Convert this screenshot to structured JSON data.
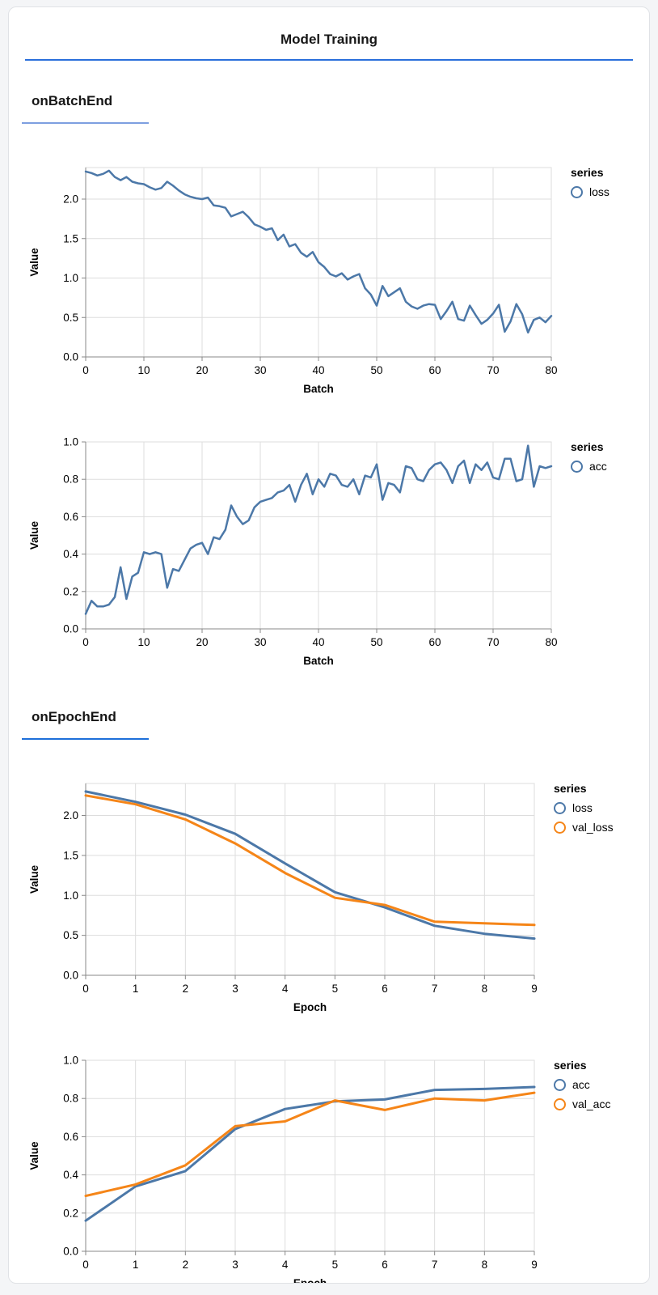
{
  "surface": {
    "title": "Model Training"
  },
  "sections": [
    {
      "heading": "onBatchEnd",
      "underline_color": "#7d9fe0"
    },
    {
      "heading": "onEpochEnd",
      "underline_color": "#1e6fd9"
    }
  ],
  "styles": {
    "page_bg": "#f4f5f7",
    "card_bg": "#ffffff",
    "card_border": "#e0e2e6",
    "title_underline": "#2a6fdb",
    "grid_color": "#dddddd",
    "axis_color": "#888888",
    "label_color": "#000000",
    "series_blue": "#4c78a8",
    "series_orange": "#f58518"
  },
  "chart_data": [
    {
      "id": "batch-loss",
      "type": "line",
      "xlabel": "Batch",
      "ylabel": "Value",
      "legend_title": "series",
      "legend_position": "right",
      "grid": true,
      "x_domain": [
        0,
        80
      ],
      "ylim": [
        0,
        2.4
      ],
      "xticks": [
        0,
        10,
        20,
        30,
        40,
        50,
        60,
        70,
        80
      ],
      "yticks": [
        0,
        0.5,
        1,
        1.5,
        2
      ],
      "ytick_decimals": 1,
      "series": [
        {
          "name": "loss",
          "color": "#4c78a8",
          "values": [
            2.35,
            2.33,
            2.3,
            2.32,
            2.36,
            2.28,
            2.24,
            2.28,
            2.22,
            2.2,
            2.19,
            2.15,
            2.12,
            2.14,
            2.22,
            2.17,
            2.11,
            2.06,
            2.03,
            2.01,
            2.0,
            2.02,
            1.92,
            1.91,
            1.89,
            1.78,
            1.81,
            1.84,
            1.77,
            1.68,
            1.65,
            1.61,
            1.63,
            1.48,
            1.55,
            1.4,
            1.43,
            1.32,
            1.27,
            1.33,
            1.2,
            1.14,
            1.05,
            1.02,
            1.06,
            0.98,
            1.02,
            1.05,
            0.87,
            0.79,
            0.65,
            0.9,
            0.77,
            0.82,
            0.87,
            0.7,
            0.64,
            0.61,
            0.65,
            0.67,
            0.66,
            0.48,
            0.58,
            0.7,
            0.48,
            0.46,
            0.65,
            0.53,
            0.42,
            0.47,
            0.55,
            0.66,
            0.32,
            0.45,
            0.67,
            0.54,
            0.31,
            0.47,
            0.5,
            0.44,
            0.52
          ]
        }
      ]
    },
    {
      "id": "batch-acc",
      "type": "line",
      "xlabel": "Batch",
      "ylabel": "Value",
      "legend_title": "series",
      "legend_position": "right",
      "grid": true,
      "x_domain": [
        0,
        80
      ],
      "ylim": [
        0,
        1.0
      ],
      "xticks": [
        0,
        10,
        20,
        30,
        40,
        50,
        60,
        70,
        80
      ],
      "yticks": [
        0,
        0.2,
        0.4,
        0.6,
        0.8,
        1.0
      ],
      "ytick_decimals": 1,
      "series": [
        {
          "name": "acc",
          "color": "#4c78a8",
          "values": [
            0.08,
            0.15,
            0.12,
            0.12,
            0.13,
            0.17,
            0.33,
            0.16,
            0.28,
            0.3,
            0.41,
            0.4,
            0.41,
            0.4,
            0.22,
            0.32,
            0.31,
            0.37,
            0.43,
            0.45,
            0.46,
            0.4,
            0.49,
            0.48,
            0.53,
            0.66,
            0.6,
            0.56,
            0.58,
            0.65,
            0.68,
            0.69,
            0.7,
            0.73,
            0.74,
            0.77,
            0.68,
            0.77,
            0.83,
            0.72,
            0.8,
            0.76,
            0.83,
            0.82,
            0.77,
            0.76,
            0.8,
            0.72,
            0.82,
            0.81,
            0.88,
            0.69,
            0.78,
            0.77,
            0.73,
            0.87,
            0.86,
            0.8,
            0.79,
            0.85,
            0.88,
            0.89,
            0.85,
            0.78,
            0.87,
            0.9,
            0.78,
            0.88,
            0.85,
            0.89,
            0.81,
            0.8,
            0.91,
            0.91,
            0.79,
            0.8,
            0.98,
            0.76,
            0.87,
            0.86,
            0.87
          ]
        }
      ]
    },
    {
      "id": "epoch-loss",
      "type": "line",
      "xlabel": "Epoch",
      "ylabel": "Value",
      "legend_title": "series",
      "legend_position": "right",
      "grid": true,
      "x": [
        0,
        1,
        2,
        3,
        4,
        5,
        6,
        7,
        8,
        9
      ],
      "x_domain": [
        0,
        9
      ],
      "ylim": [
        0,
        2.4
      ],
      "xticks": [
        0,
        1,
        2,
        3,
        4,
        5,
        6,
        7,
        8,
        9
      ],
      "yticks": [
        0,
        0.5,
        1,
        1.5,
        2
      ],
      "ytick_decimals": 1,
      "series": [
        {
          "name": "loss",
          "color": "#4c78a8",
          "values": [
            2.3,
            2.17,
            2.01,
            1.77,
            1.4,
            1.04,
            0.85,
            0.62,
            0.52,
            0.46
          ]
        },
        {
          "name": "val_loss",
          "color": "#f58518",
          "values": [
            2.25,
            2.14,
            1.95,
            1.65,
            1.28,
            0.97,
            0.88,
            0.67,
            0.65,
            0.63
          ]
        }
      ]
    },
    {
      "id": "epoch-acc",
      "type": "line",
      "xlabel": "Epoch",
      "ylabel": "Value",
      "legend_title": "series",
      "legend_position": "right",
      "grid": true,
      "x": [
        0,
        1,
        2,
        3,
        4,
        5,
        6,
        7,
        8,
        9
      ],
      "x_domain": [
        0,
        9
      ],
      "ylim": [
        0,
        1.0
      ],
      "xticks": [
        0,
        1,
        2,
        3,
        4,
        5,
        6,
        7,
        8,
        9
      ],
      "yticks": [
        0,
        0.2,
        0.4,
        0.6,
        0.8,
        1.0
      ],
      "ytick_decimals": 1,
      "series": [
        {
          "name": "acc",
          "color": "#4c78a8",
          "values": [
            0.16,
            0.34,
            0.42,
            0.64,
            0.745,
            0.785,
            0.795,
            0.845,
            0.85,
            0.86
          ]
        },
        {
          "name": "val_acc",
          "color": "#f58518",
          "values": [
            0.29,
            0.35,
            0.45,
            0.655,
            0.68,
            0.79,
            0.74,
            0.8,
            0.79,
            0.83
          ]
        }
      ]
    }
  ]
}
